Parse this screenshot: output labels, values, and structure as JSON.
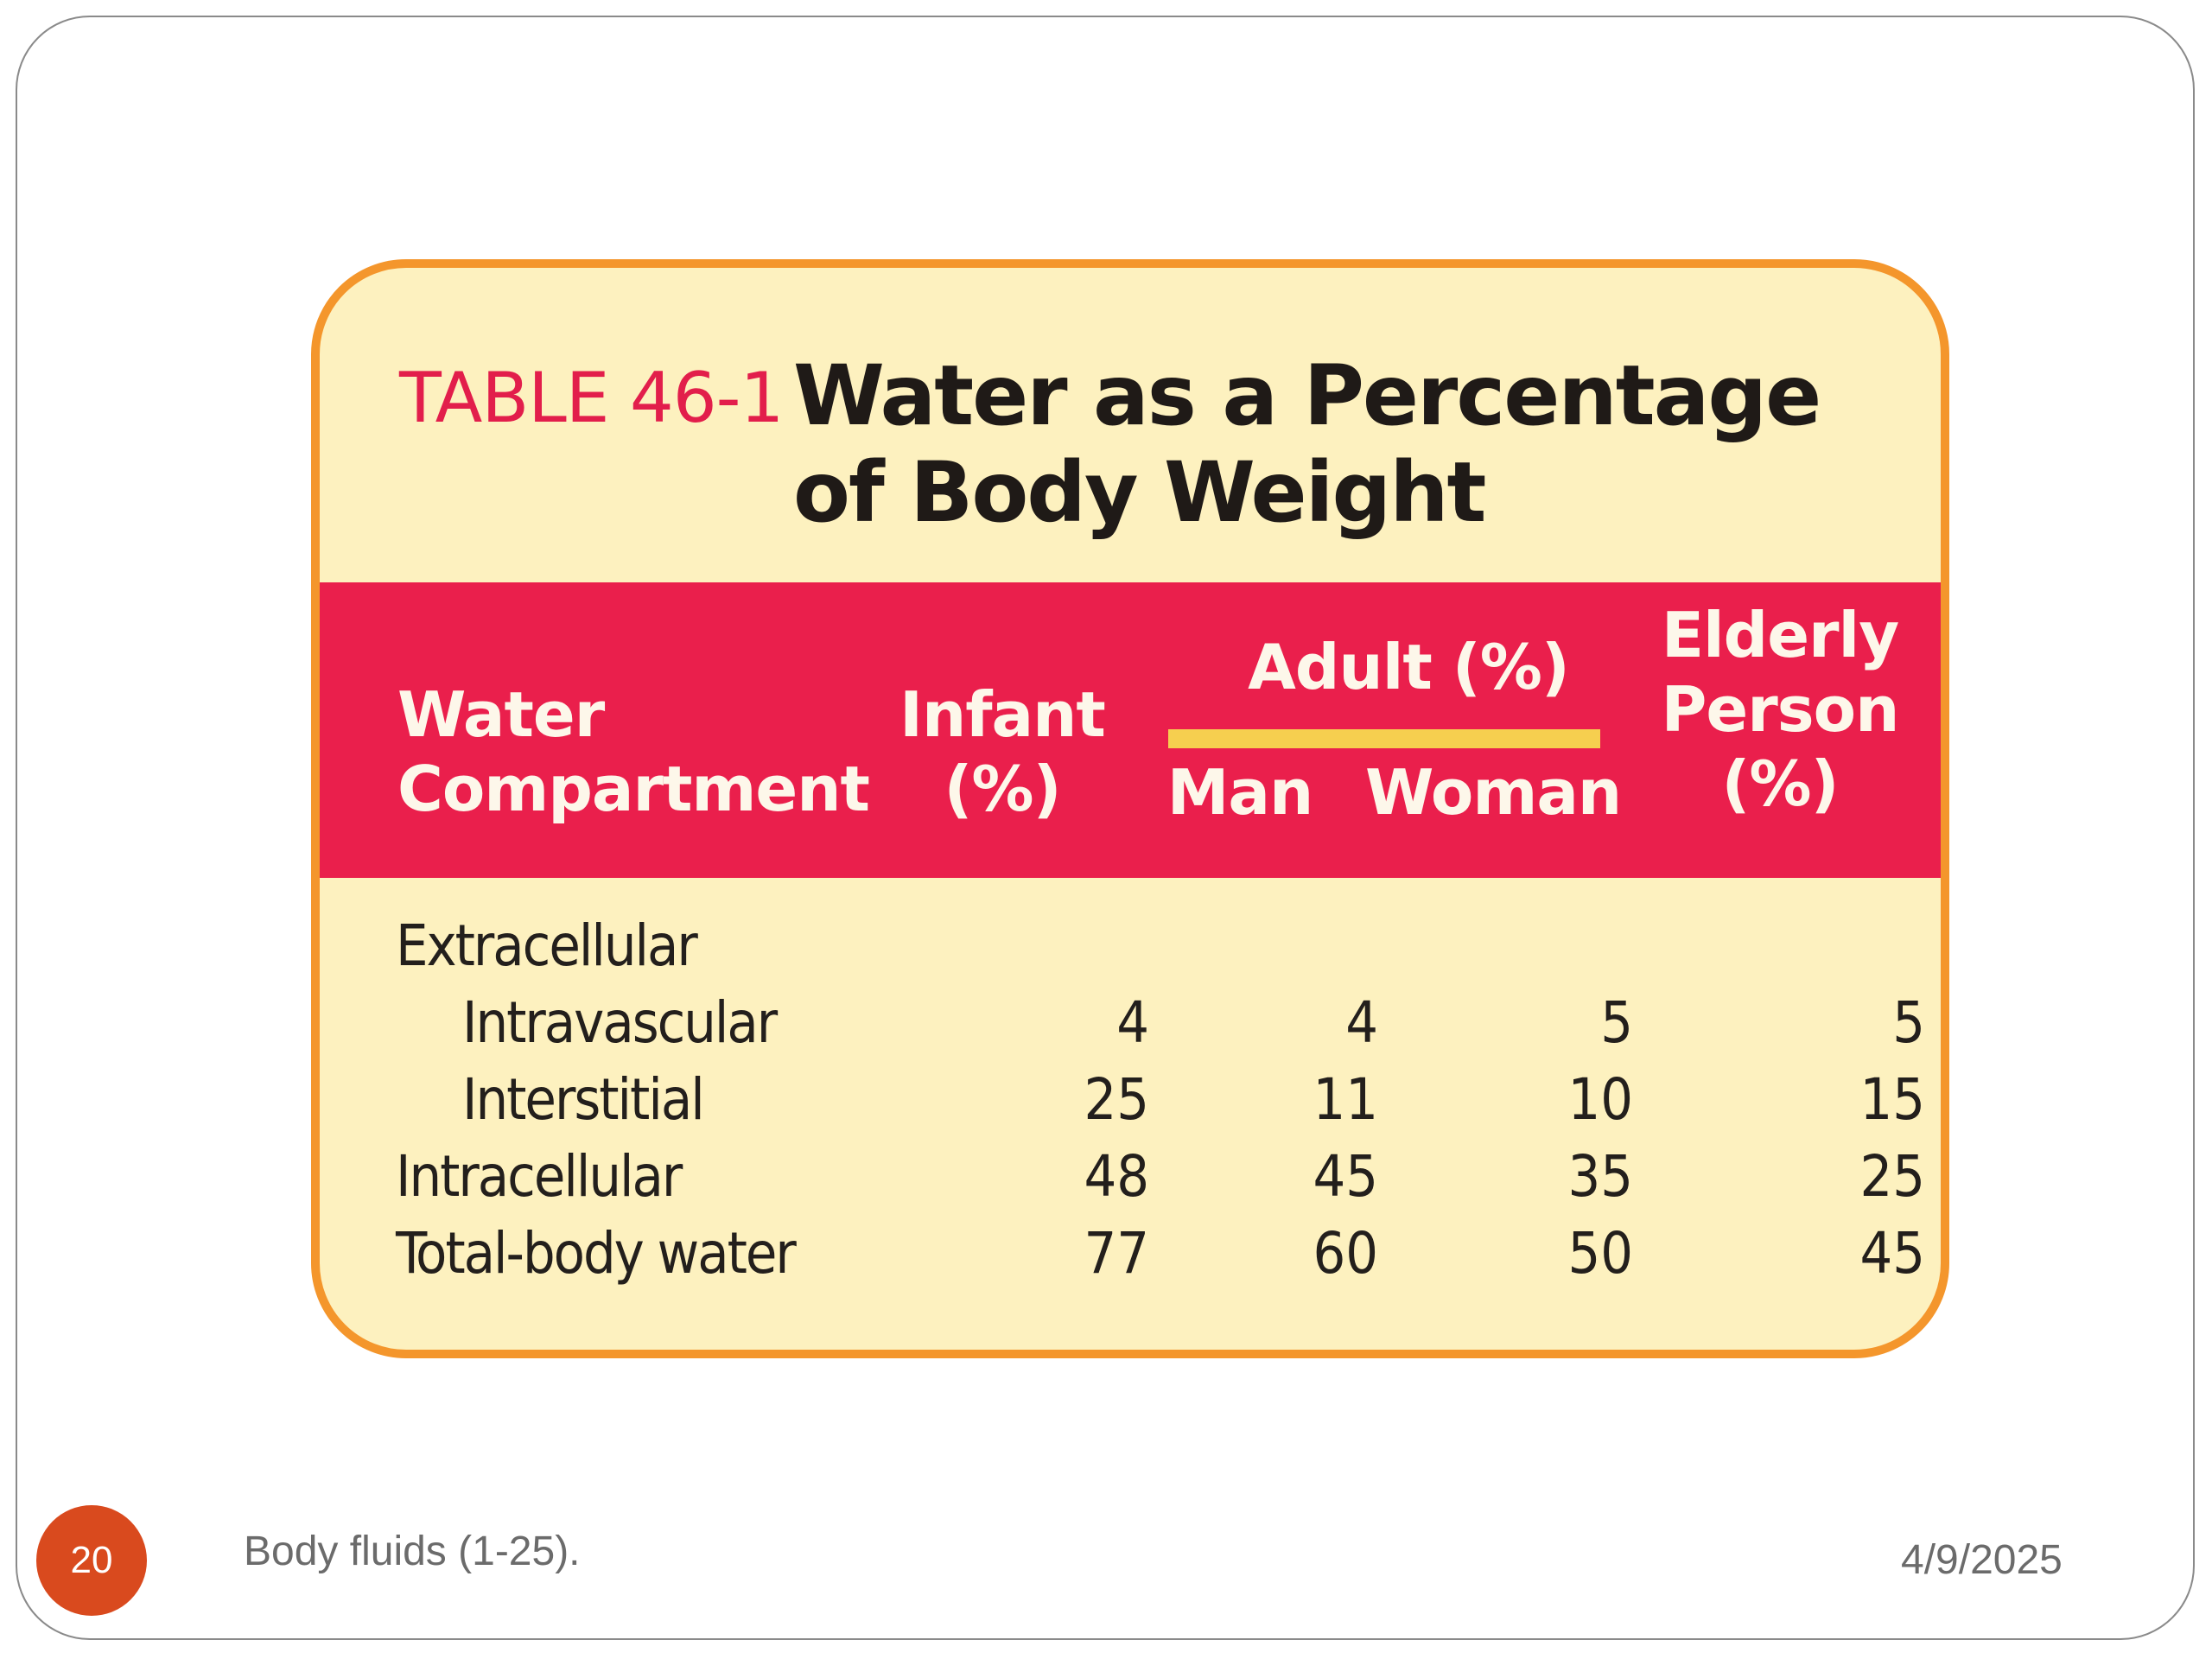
{
  "table": {
    "number": "TABLE 46-1",
    "title_line1": "Water as a Percentage",
    "title_line2": "of Body Weight",
    "headers": {
      "water_compartment_line1": "Water",
      "water_compartment_line2": "Compartment",
      "infant_line1": "Infant",
      "infant_line2": "(%)",
      "adult": "Adult (%)",
      "man": "Man",
      "woman": "Woman",
      "elderly_line1": "Elderly",
      "elderly_line2": "Person",
      "elderly_line3": "(%)"
    },
    "rows": [
      {
        "label": "Extracellular",
        "infant": "",
        "man": "",
        "woman": "",
        "elderly": ""
      },
      {
        "label": "Intravascular",
        "infant": "4",
        "man": "4",
        "woman": "5",
        "elderly": "5"
      },
      {
        "label": "Interstitial",
        "infant": "25",
        "man": "11",
        "woman": "10",
        "elderly": "15"
      },
      {
        "label": "Intracellular",
        "infant": "48",
        "man": "45",
        "woman": "35",
        "elderly": "25"
      },
      {
        "label": "Total-body water",
        "infant": "77",
        "man": "60",
        "woman": "50",
        "elderly": "45"
      }
    ]
  },
  "footer": {
    "page_number": "20",
    "title": "Body fluids (1-25).",
    "date": "4/9/2025"
  },
  "colors": {
    "accent_red": "#ea1f4c",
    "card_background": "#fdf1bf",
    "card_border": "#f4962c",
    "adult_rule": "#f6cf4f",
    "page_badge": "#d94a1e"
  }
}
